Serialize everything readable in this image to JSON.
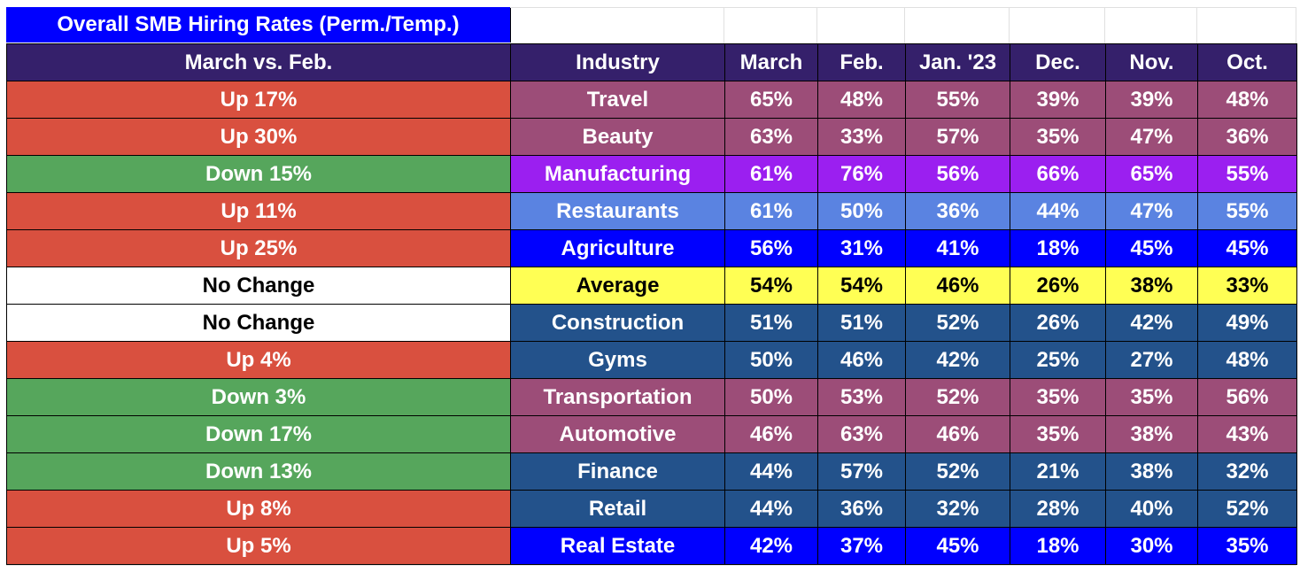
{
  "title": "Overall SMB Hiring Rates (Perm./Temp.)",
  "headers": {
    "change": "March vs. Feb.",
    "industry": "Industry",
    "months": [
      "March",
      "Feb.",
      "Jan. '23",
      "Dec.",
      "Nov.",
      "Oct."
    ]
  },
  "colors": {
    "header_bg": "#35206b",
    "title_bg": "#0000ff",
    "up": "#d9503f",
    "down": "#56a65c",
    "no_change": "#ffffff",
    "mauve": "#9c4d78",
    "purple": "#9b1ff0",
    "light_blue": "#5a83e1",
    "blue": "#0000ff",
    "yellow": "#ffff54",
    "navy": "#23528b"
  },
  "rows": [
    {
      "change": "Up 17%",
      "trend": "up",
      "industry": "Travel",
      "color": "mauve",
      "values": [
        "65%",
        "48%",
        "55%",
        "39%",
        "39%",
        "48%"
      ]
    },
    {
      "change": "Up 30%",
      "trend": "up",
      "industry": "Beauty",
      "color": "mauve",
      "values": [
        "63%",
        "33%",
        "57%",
        "35%",
        "47%",
        "36%"
      ]
    },
    {
      "change": "Down 15%",
      "trend": "down",
      "industry": "Manufacturing",
      "color": "purple",
      "values": [
        "61%",
        "76%",
        "56%",
        "66%",
        "65%",
        "55%"
      ]
    },
    {
      "change": "Up 11%",
      "trend": "up",
      "industry": "Restaurants",
      "color": "light_blue",
      "values": [
        "61%",
        "50%",
        "36%",
        "44%",
        "47%",
        "55%"
      ]
    },
    {
      "change": "Up 25%",
      "trend": "up",
      "industry": "Agriculture",
      "color": "blue",
      "values": [
        "56%",
        "31%",
        "41%",
        "18%",
        "45%",
        "45%"
      ]
    },
    {
      "change": "No Change",
      "trend": "nochange",
      "industry": "Average",
      "color": "yellow",
      "values": [
        "54%",
        "54%",
        "46%",
        "26%",
        "38%",
        "33%"
      ]
    },
    {
      "change": "No Change",
      "trend": "nochange",
      "industry": "Construction",
      "color": "navy",
      "values": [
        "51%",
        "51%",
        "52%",
        "26%",
        "42%",
        "49%"
      ]
    },
    {
      "change": "Up 4%",
      "trend": "up",
      "industry": "Gyms",
      "color": "navy",
      "values": [
        "50%",
        "46%",
        "42%",
        "25%",
        "27%",
        "48%"
      ]
    },
    {
      "change": "Down 3%",
      "trend": "down",
      "industry": "Transportation",
      "color": "mauve",
      "values": [
        "50%",
        "53%",
        "52%",
        "35%",
        "35%",
        "56%"
      ]
    },
    {
      "change": "Down 17%",
      "trend": "down",
      "industry": "Automotive",
      "color": "mauve",
      "values": [
        "46%",
        "63%",
        "46%",
        "35%",
        "38%",
        "43%"
      ]
    },
    {
      "change": "Down 13%",
      "trend": "down",
      "industry": "Finance",
      "color": "navy",
      "values": [
        "44%",
        "57%",
        "52%",
        "21%",
        "38%",
        "32%"
      ]
    },
    {
      "change": "Up 8%",
      "trend": "up",
      "industry": "Retail",
      "color": "navy",
      "values": [
        "44%",
        "36%",
        "32%",
        "28%",
        "40%",
        "52%"
      ]
    },
    {
      "change": "Up 5%",
      "trend": "up",
      "industry": "Real Estate",
      "color": "blue",
      "values": [
        "42%",
        "37%",
        "45%",
        "18%",
        "30%",
        "35%"
      ]
    }
  ]
}
